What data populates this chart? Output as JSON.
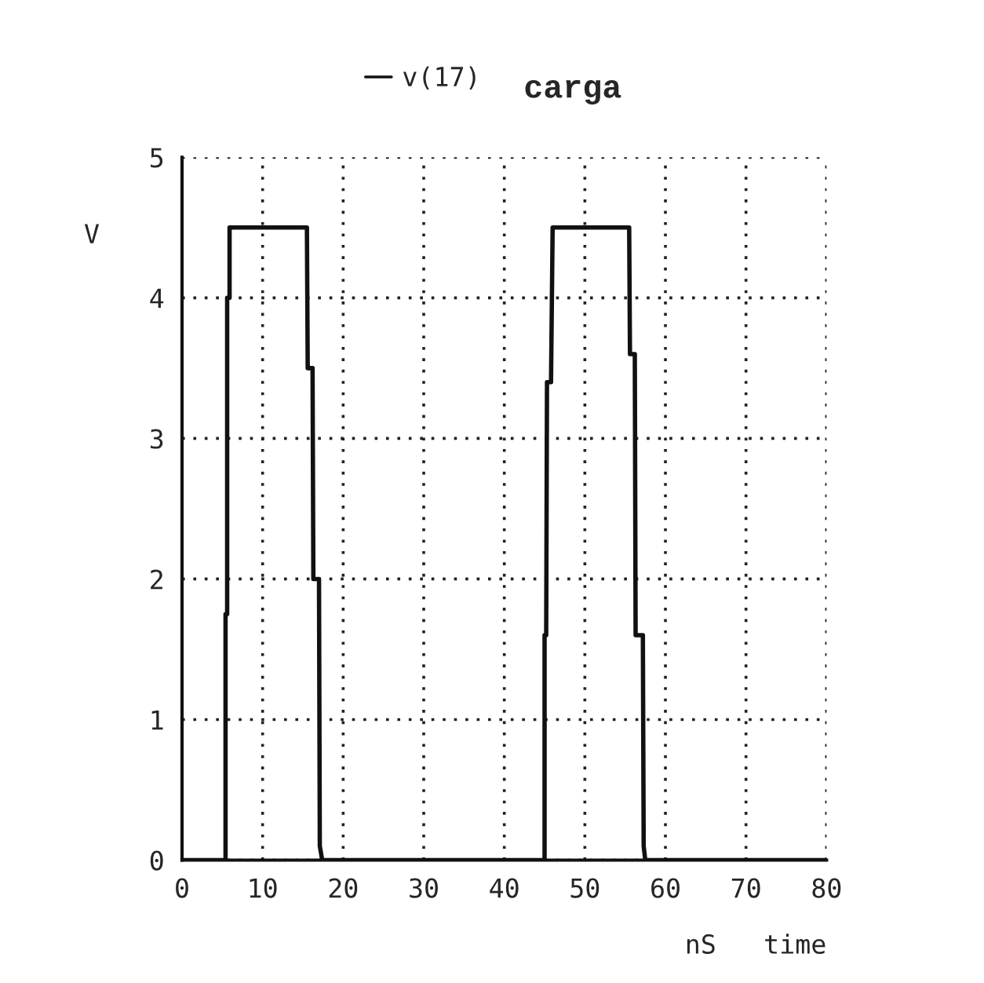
{
  "chart_data": {
    "type": "line",
    "title": "carga",
    "xlabel": "nS   time",
    "ylabel": "V",
    "x": [
      0,
      5.4,
      5.4,
      5.6,
      5.6,
      5.9,
      5.9,
      15.5,
      15.6,
      16.2,
      16.3,
      17.0,
      17.1,
      17.4,
      45.0,
      45.0,
      45.2,
      45.3,
      45.8,
      46.0,
      55.5,
      55.6,
      56.2,
      56.3,
      57.2,
      57.3,
      57.5,
      80
    ],
    "series": [
      {
        "name": "v(17)",
        "color": "#111111",
        "values": [
          0,
          0,
          1.75,
          1.75,
          4.0,
          4.0,
          4.5,
          4.5,
          3.5,
          3.5,
          2.0,
          2.0,
          0.1,
          0,
          0,
          1.6,
          1.6,
          3.4,
          3.4,
          4.5,
          4.5,
          3.6,
          3.6,
          1.6,
          1.6,
          0.1,
          0,
          0
        ]
      }
    ],
    "xlim": [
      0,
      80
    ],
    "xticks": [
      0,
      10,
      20,
      30,
      40,
      50,
      60,
      70,
      80
    ],
    "ylim": [
      0,
      5
    ],
    "yticks": [
      0,
      1,
      2,
      3,
      4,
      5
    ],
    "grid": true,
    "legend": "top",
    "line_style": "solid",
    "marker": "none"
  }
}
